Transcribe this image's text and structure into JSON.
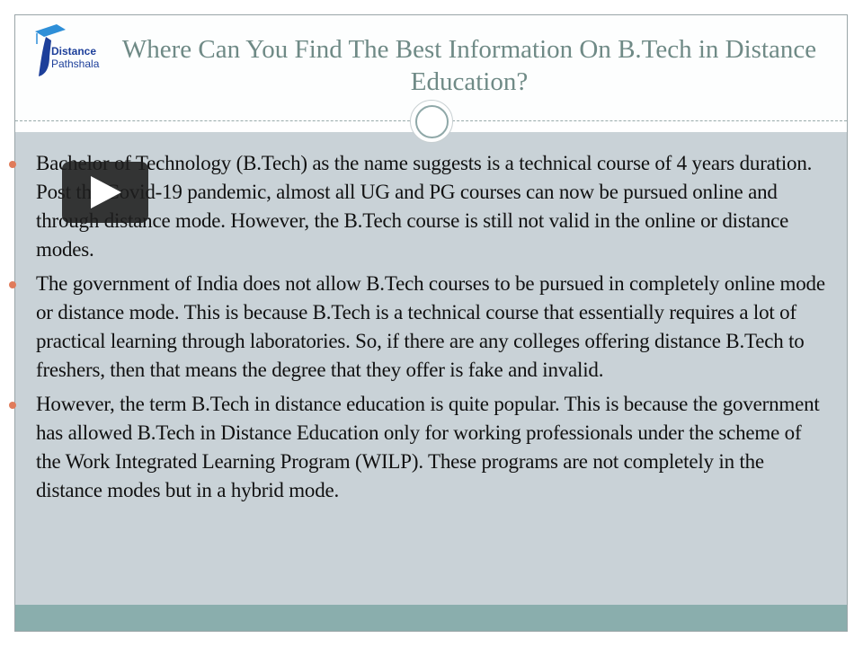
{
  "logo": {
    "line1": "Distance",
    "line2": "Pathshala"
  },
  "title": "Where Can You Find The Best Information On B.Tech in Distance Education?",
  "bullets": [
    "Bachelor of Technology (B.Tech) as the name suggests is a technical course of 4 years duration. Post the Covid-19 pandemic, almost all UG and PG courses can now be pursued online and through distance mode. However, the B.Tech course is still not valid in the online or distance modes.",
    "The government of India does not allow B.Tech courses to be pursued in completely online mode or distance mode. This is because B.Tech is a technical course that essentially requires a lot of practical learning through laboratories. So, if there are any colleges offering distance B.Tech to freshers, then that means the degree that they offer is fake and invalid.",
    "However, the term B.Tech in distance education is quite popular. This is because the government has allowed B.Tech in Distance Education only for working professionals under the scheme of the Work Integrated Learning Program (WILP). These programs are not completely in the distance modes but in a hybrid mode."
  ],
  "colors": {
    "title": "#6f8a86",
    "body_bg": "#c9d2d7",
    "footer": "#8aaead",
    "bullet": "#e07b5a"
  },
  "icons": {
    "play": "play-icon",
    "logo": "graduation-cap-logo"
  }
}
